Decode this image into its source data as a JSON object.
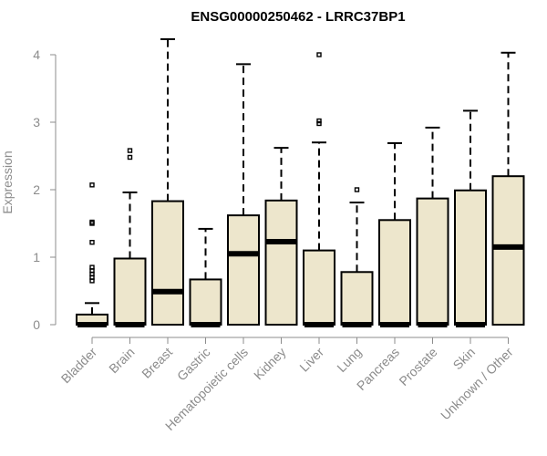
{
  "chart_data": {
    "type": "boxplot",
    "title": "ENSG00000250462 - LRRC37BP1",
    "xlabel": "",
    "ylabel": "Expression",
    "ylim": [
      0,
      4.2
    ],
    "yticks": [
      0,
      1,
      2,
      3,
      4
    ],
    "grid": false,
    "box_fill": "#ede6cc",
    "categories": [
      "Bladder",
      "Brain",
      "Breast",
      "Gastric",
      "Hematopoietic cells",
      "Kidney",
      "Liver",
      "Lung",
      "Pancreas",
      "Prostate",
      "Skin",
      "Unknown / Other"
    ],
    "boxes": [
      {
        "category": "Bladder",
        "whisker_low": 0,
        "q1": 0,
        "median": 0,
        "q3": 0.15,
        "whisker_high": 0.32,
        "outliers": [
          2.07,
          1.52,
          1.5,
          1.22,
          0.85,
          0.8,
          0.75,
          0.7,
          0.65
        ]
      },
      {
        "category": "Brain",
        "whisker_low": 0,
        "q1": 0,
        "median": 0,
        "q3": 0.98,
        "whisker_high": 1.96,
        "outliers": [
          2.58,
          2.48
        ]
      },
      {
        "category": "Breast",
        "whisker_low": 0,
        "q1": 0,
        "median": 0.49,
        "q3": 1.83,
        "whisker_high": 4.23,
        "outliers": []
      },
      {
        "category": "Gastric",
        "whisker_low": 0,
        "q1": 0,
        "median": 0,
        "q3": 0.67,
        "whisker_high": 1.42,
        "outliers": []
      },
      {
        "category": "Hematopoietic cells",
        "whisker_low": 0,
        "q1": 0,
        "median": 1.05,
        "q3": 1.62,
        "whisker_high": 3.86,
        "outliers": []
      },
      {
        "category": "Kidney",
        "whisker_low": 0,
        "q1": 0,
        "median": 1.23,
        "q3": 1.84,
        "whisker_high": 2.62,
        "outliers": []
      },
      {
        "category": "Liver",
        "whisker_low": 0,
        "q1": 0,
        "median": 0,
        "q3": 1.1,
        "whisker_high": 2.7,
        "outliers": [
          4.0,
          3.02,
          2.98
        ]
      },
      {
        "category": "Lung",
        "whisker_low": 0,
        "q1": 0,
        "median": 0,
        "q3": 0.78,
        "whisker_high": 1.81,
        "outliers": [
          2.0
        ]
      },
      {
        "category": "Pancreas",
        "whisker_low": 0,
        "q1": 0,
        "median": 0,
        "q3": 1.55,
        "whisker_high": 2.69,
        "outliers": []
      },
      {
        "category": "Prostate",
        "whisker_low": 0,
        "q1": 0,
        "median": 0,
        "q3": 1.87,
        "whisker_high": 2.92,
        "outliers": []
      },
      {
        "category": "Skin",
        "whisker_low": 0,
        "q1": 0,
        "median": 0,
        "q3": 1.99,
        "whisker_high": 3.17,
        "outliers": []
      },
      {
        "category": "Unknown / Other",
        "whisker_low": 0,
        "q1": 0,
        "median": 1.15,
        "q3": 2.2,
        "whisker_high": 4.03,
        "outliers": []
      }
    ]
  }
}
